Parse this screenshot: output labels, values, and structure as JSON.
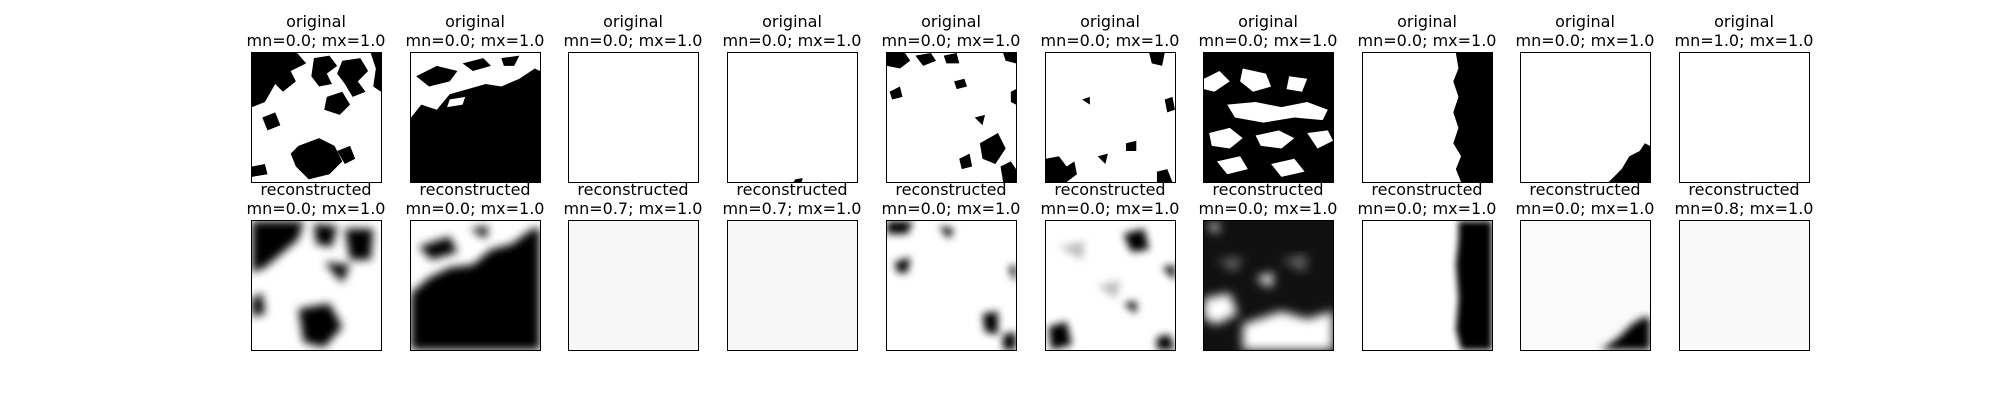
{
  "row_original": {
    "label": "original",
    "items": [
      {
        "stats": "mn=0.0; mx=1.0"
      },
      {
        "stats": "mn=0.0; mx=1.0"
      },
      {
        "stats": "mn=0.0; mx=1.0"
      },
      {
        "stats": "mn=0.0; mx=1.0"
      },
      {
        "stats": "mn=0.0; mx=1.0"
      },
      {
        "stats": "mn=0.0; mx=1.0"
      },
      {
        "stats": "mn=0.0; mx=1.0"
      },
      {
        "stats": "mn=0.0; mx=1.0"
      },
      {
        "stats": "mn=0.0; mx=1.0"
      },
      {
        "stats": "mn=1.0; mx=1.0"
      }
    ]
  },
  "row_reconstructed": {
    "label": "reconstructed",
    "items": [
      {
        "stats": "mn=0.0; mx=1.0"
      },
      {
        "stats": "mn=0.0; mx=1.0"
      },
      {
        "stats": "mn=0.7; mx=1.0"
      },
      {
        "stats": "mn=0.7; mx=1.0"
      },
      {
        "stats": "mn=0.0; mx=1.0"
      },
      {
        "stats": "mn=0.0; mx=1.0"
      },
      {
        "stats": "mn=0.0; mx=1.0"
      },
      {
        "stats": "mn=0.0; mx=1.0"
      },
      {
        "stats": "mn=0.0; mx=1.0"
      },
      {
        "stats": "mn=0.8; mx=1.0"
      }
    ]
  },
  "colors": {
    "ink": "#000000",
    "paper": "#ffffff",
    "faint": "#f7f7f7"
  }
}
